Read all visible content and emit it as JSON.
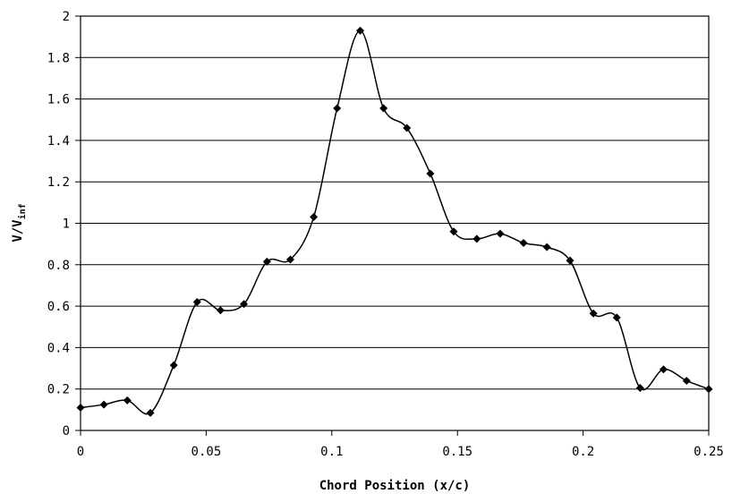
{
  "chart_data": {
    "type": "line",
    "title": "",
    "xlabel": "Chord Position (x/c)",
    "ylabel": {
      "base": "V/V",
      "sub": "inf"
    },
    "xlim": [
      0,
      0.25
    ],
    "ylim": [
      0,
      2
    ],
    "grid": "horizontal",
    "legend": "none",
    "x_ticks": [
      "0",
      "0.05",
      "0.1",
      "0.15",
      "0.2",
      "0.25"
    ],
    "y_ticks": [
      "0",
      "0.2",
      "0.4",
      "0.6",
      "0.8",
      "1",
      "1.2",
      "1.4",
      "1.6",
      "1.8",
      "2"
    ],
    "series": [
      {
        "color": "#000000",
        "marker": "diamond",
        "smoothed": true,
        "points": [
          [
            0.0,
            0.11
          ],
          [
            0.0093,
            0.125
          ],
          [
            0.0186,
            0.145
          ],
          [
            0.0278,
            0.085
          ],
          [
            0.0371,
            0.315
          ],
          [
            0.0464,
            0.62
          ],
          [
            0.0557,
            0.58
          ],
          [
            0.065,
            0.61
          ],
          [
            0.0742,
            0.815
          ],
          [
            0.0835,
            0.825
          ],
          [
            0.0928,
            1.03
          ],
          [
            0.1021,
            1.555
          ],
          [
            0.1113,
            1.93
          ],
          [
            0.1206,
            1.555
          ],
          [
            0.1299,
            1.46
          ],
          [
            0.1392,
            1.24
          ],
          [
            0.1485,
            0.96
          ],
          [
            0.1577,
            0.925
          ],
          [
            0.167,
            0.95
          ],
          [
            0.1763,
            0.905
          ],
          [
            0.1856,
            0.885
          ],
          [
            0.1948,
            0.82
          ],
          [
            0.2041,
            0.565
          ],
          [
            0.2134,
            0.545
          ],
          [
            0.2227,
            0.205
          ],
          [
            0.232,
            0.295
          ],
          [
            0.2412,
            0.24
          ],
          [
            0.25,
            0.2
          ]
        ]
      }
    ]
  }
}
